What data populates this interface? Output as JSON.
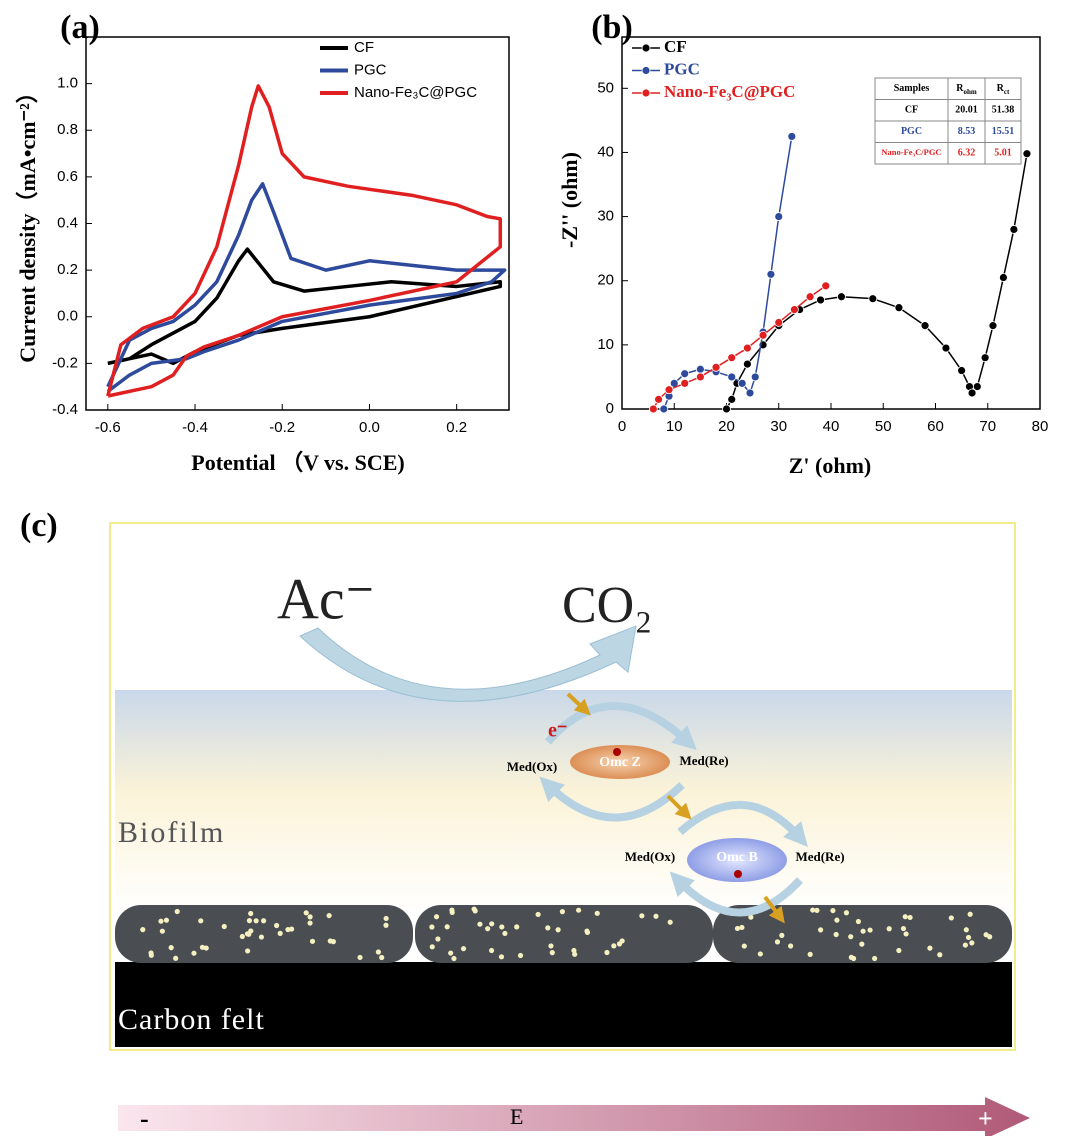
{
  "chart_data": [
    {
      "type": "line",
      "panel_label": "(a)",
      "x_label": "Potential （V vs. SCE)",
      "y_label": "Current density（mA•cm⁻²）",
      "xlim": [
        -0.65,
        0.32
      ],
      "ylim": [
        -0.4,
        1.2
      ],
      "xticks": [
        -0.6,
        -0.4,
        -0.2,
        {
          "value": 0,
          "label": "0.0"
        },
        0.2
      ],
      "yticks": [
        -0.4,
        -0.2,
        {
          "value": 0,
          "label": "0.0"
        },
        0.2,
        0.4,
        0.6,
        0.8,
        {
          "value": 1,
          "label": "1.0"
        }
      ],
      "legend": "upper right",
      "markers": false,
      "series": [
        {
          "name": "CF",
          "color": "#000000",
          "x": [
            -0.6,
            -0.55,
            -0.5,
            -0.45,
            -0.4,
            -0.35,
            -0.3,
            -0.28,
            -0.25,
            -0.22,
            -0.15,
            -0.05,
            0.05,
            0.2,
            0.3,
            0.3,
            0.0,
            -0.2,
            -0.3,
            -0.4,
            -0.45,
            -0.5,
            -0.55,
            -0.6
          ],
          "values": [
            -0.2,
            -0.18,
            -0.12,
            -0.07,
            -0.02,
            0.08,
            0.24,
            0.29,
            0.22,
            0.15,
            0.11,
            0.13,
            0.15,
            0.13,
            0.15,
            0.13,
            0.0,
            -0.05,
            -0.08,
            -0.15,
            -0.2,
            -0.16,
            -0.18,
            -0.2
          ]
        },
        {
          "name": "PGC",
          "color": "#2e4a9c",
          "x": [
            -0.6,
            -0.55,
            -0.5,
            -0.45,
            -0.4,
            -0.35,
            -0.3,
            -0.27,
            -0.245,
            -0.22,
            -0.18,
            -0.1,
            0.0,
            0.1,
            0.2,
            0.31,
            0.28,
            0.2,
            0.0,
            -0.2,
            -0.3,
            -0.38,
            -0.42,
            -0.5,
            -0.55,
            -0.6
          ],
          "values": [
            -0.3,
            -0.1,
            -0.05,
            -0.02,
            0.05,
            0.15,
            0.35,
            0.5,
            0.57,
            0.45,
            0.25,
            0.2,
            0.24,
            0.22,
            0.2,
            0.2,
            0.15,
            0.1,
            0.05,
            -0.02,
            -0.1,
            -0.15,
            -0.18,
            -0.2,
            -0.25,
            -0.32
          ]
        },
        {
          "name": "Nano-Fe₃C@PGC",
          "color": "#e02020",
          "x": [
            -0.6,
            -0.57,
            -0.52,
            -0.45,
            -0.4,
            -0.35,
            -0.3,
            -0.27,
            -0.255,
            -0.23,
            -0.2,
            -0.15,
            -0.05,
            0.1,
            0.2,
            0.27,
            0.3,
            0.3,
            0.2,
            0.0,
            -0.2,
            -0.3,
            -0.38,
            -0.42,
            -0.45,
            -0.5,
            -0.55,
            -0.6
          ],
          "values": [
            -0.34,
            -0.12,
            -0.05,
            0.0,
            0.1,
            0.3,
            0.65,
            0.9,
            0.99,
            0.9,
            0.7,
            0.6,
            0.56,
            0.52,
            0.48,
            0.43,
            0.42,
            0.3,
            0.15,
            0.07,
            0.0,
            -0.08,
            -0.13,
            -0.17,
            -0.25,
            -0.3,
            -0.32,
            -0.34
          ]
        }
      ]
    },
    {
      "type": "line",
      "panel_label": "(b)",
      "x_label": "Z' (ohm)",
      "y_label": "-Z'' (ohm)",
      "xlim": [
        0,
        80
      ],
      "ylim": [
        0,
        58
      ],
      "xticks": [
        0,
        10,
        20,
        30,
        40,
        50,
        60,
        70,
        80
      ],
      "yticks": [
        0,
        10,
        20,
        30,
        40,
        50
      ],
      "legend": "upper left",
      "markers": true,
      "series": [
        {
          "name": "CF",
          "color": "#000000",
          "x": [
            20,
            21,
            22,
            24,
            27,
            30,
            34,
            38,
            42,
            48,
            53,
            58,
            62,
            65,
            66.5,
            67,
            68,
            69.5,
            71,
            73,
            75,
            77.5
          ],
          "values": [
            0,
            1.5,
            4,
            7,
            10,
            13,
            15.5,
            17,
            17.5,
            17.2,
            15.8,
            13,
            9.5,
            6,
            3.5,
            2.5,
            3.5,
            8,
            13,
            20.5,
            28,
            39.8
          ]
        },
        {
          "name": "PGC",
          "color": "#2e4a9c",
          "x": [
            8,
            9,
            10,
            12,
            15,
            18,
            21,
            23,
            24.5,
            25.5,
            27,
            28.5,
            30,
            32.5
          ],
          "values": [
            0,
            2,
            4,
            5.5,
            6.2,
            5.8,
            5,
            4,
            2.5,
            5,
            12,
            21,
            30,
            42.5
          ]
        },
        {
          "name": "Nano-Fe₃C@PGC",
          "color": "#e02020",
          "x": [
            6,
            7,
            9,
            12,
            15,
            18,
            21,
            24,
            27,
            30,
            33,
            36,
            39
          ],
          "values": [
            0,
            1.5,
            3,
            4,
            5,
            6.5,
            8,
            9.5,
            11.5,
            13.5,
            15.5,
            17.5,
            19.2
          ]
        }
      ],
      "table": {
        "header": [
          "Samples",
          {
            "text": "R",
            "sub": "ohm"
          },
          {
            "text": "R",
            "sub": "ct"
          }
        ],
        "rows": [
          [
            "CF",
            20.01,
            51.38
          ],
          [
            "PGC",
            8.53,
            15.51
          ],
          [
            "Nano-Fe₃C/PGC",
            6.32,
            5.01
          ]
        ]
      }
    }
  ],
  "diagram": {
    "panel_label": "(c)",
    "substrate": "Ac⁻",
    "product": "CO₂",
    "electron": "e⁻",
    "cycles": [
      {
        "left": "Med(Ox)",
        "center": "Omc Z",
        "right": "Med(Re)"
      },
      {
        "left": "Med(Ox)",
        "center": "Omc B",
        "right": "Med(Re)"
      }
    ],
    "biofilm": "Biofilm",
    "electrode": "Carbon felt",
    "axis": {
      "minus": "-",
      "label": "E",
      "plus": "+"
    }
  }
}
